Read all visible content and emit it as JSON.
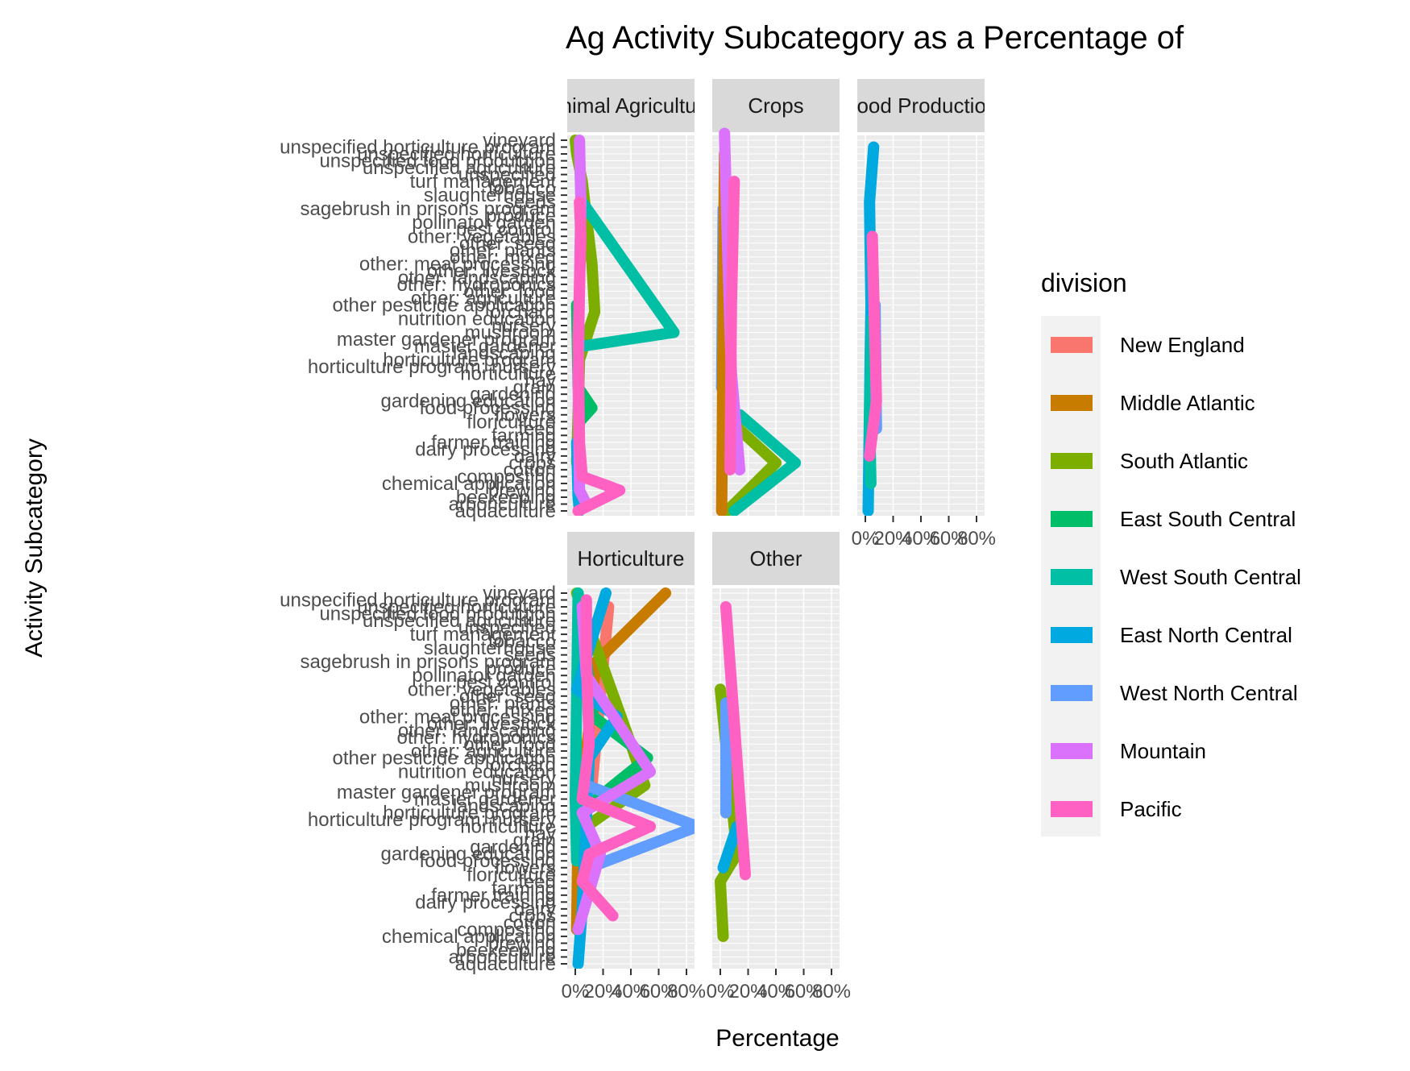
{
  "chart_data": {
    "type": "line",
    "title": "Ag Activity Subcategory as a Percentage of",
    "xlabel": "Percentage",
    "ylabel": "Activity Subcategory",
    "x_ticks": [
      "0%",
      "20%",
      "40%",
      "60%",
      "80%"
    ],
    "xlim": [
      0,
      80
    ],
    "legend": {
      "title": "division",
      "placement": "right",
      "entries": [
        {
          "name": "New England",
          "color": "#F8766D"
        },
        {
          "name": "Middle Atlantic",
          "color": "#C77C00"
        },
        {
          "name": "South Atlantic",
          "color": "#7CAE00"
        },
        {
          "name": "East South Central",
          "color": "#00BE67"
        },
        {
          "name": "West South Central",
          "color": "#00BFA4"
        },
        {
          "name": "East North Central",
          "color": "#00A9E0"
        },
        {
          "name": "West North Central",
          "color": "#619CFF"
        },
        {
          "name": "Mountain",
          "color": "#DB72FB"
        },
        {
          "name": "Pacific",
          "color": "#FF61C3"
        }
      ]
    },
    "categories": [
      "aquaculture",
      "arboriculture",
      "beekeeping",
      "brewing",
      "chemical application",
      "composting",
      "cotton",
      "crops",
      "dairy",
      "dairy processing",
      "farmer training",
      "farming",
      "feed",
      "floriculture",
      "flowers",
      "food processing",
      "gardening education",
      "gardening",
      "grain",
      "hay",
      "horticulture",
      "horticulture program: nursery",
      "horticulture program",
      "landscaping",
      "master gardener",
      "master gardener program",
      "mushroom",
      "nursery",
      "nutrition education",
      "orchard",
      "other pesticide application",
      "other: agriculture",
      "other: food",
      "other: hydroponics",
      "other: landscaping",
      "other: livestock",
      "other: meat processing",
      "other: mixed",
      "other: plants",
      "other: seed",
      "other: vegetables",
      "pest control",
      "pollinator garden",
      "produce",
      "sagebrush in prisons program",
      "seeds",
      "slaughterhouse",
      "tobacco",
      "turf management",
      "unspecified",
      "unspecified agriculture",
      "unspecified food production",
      "unspecified horticulture",
      "unspecified horticulture program",
      "vineyard"
    ],
    "facets": [
      {
        "label": "Animal Agriculture",
        "series": [
          {
            "name": "South Atlantic",
            "points": [
              [
                1,
                7
              ],
              [
                2,
                14
              ],
              [
                3,
                22
              ],
              [
                14,
                29
              ],
              [
                12,
                36
              ],
              [
                5,
                48
              ],
              [
                1,
                52
              ],
              [
                0,
                54
              ]
            ]
          },
          {
            "name": "East South Central",
            "points": [
              [
                2,
                8
              ],
              [
                3,
                13
              ],
              [
                12,
                15
              ],
              [
                2,
                18
              ],
              [
                1,
                30
              ]
            ]
          },
          {
            "name": "West South Central",
            "points": [
              [
                5,
                24
              ],
              [
                71,
                26
              ],
              [
                5,
                45
              ]
            ]
          },
          {
            "name": "East North Central",
            "points": [
              [
                3,
                0
              ],
              [
                2,
                2
              ],
              [
                1,
                10
              ]
            ]
          },
          {
            "name": "Mountain",
            "points": [
              [
                8,
                1
              ],
              [
                3,
                3
              ],
              [
                2,
                20
              ],
              [
                4,
                45
              ],
              [
                3,
                54
              ]
            ]
          },
          {
            "name": "Pacific",
            "points": [
              [
                2,
                0
              ],
              [
                32,
                3
              ],
              [
                5,
                5
              ],
              [
                3,
                10
              ],
              [
                2,
                25
              ],
              [
                4,
                40
              ],
              [
                3,
                45
              ]
            ]
          }
        ]
      },
      {
        "label": "Crops",
        "series": [
          {
            "name": "South Atlantic",
            "points": [
              [
                1,
                18
              ],
              [
                13,
                12
              ],
              [
                40,
                7
              ],
              [
                5,
                0
              ]
            ]
          },
          {
            "name": "West South Central",
            "points": [
              [
                14,
                14
              ],
              [
                54,
                7
              ],
              [
                10,
                0
              ]
            ]
          },
          {
            "name": "West North Central",
            "points": [
              [
                1,
                18
              ],
              [
                2,
                44
              ]
            ]
          },
          {
            "name": "Middle Atlantic",
            "points": [
              [
                1,
                0
              ],
              [
                3,
                52
              ]
            ]
          },
          {
            "name": "Mountain",
            "points": [
              [
                14,
                6
              ],
              [
                8,
                20
              ],
              [
                5,
                40
              ],
              [
                3,
                55
              ]
            ]
          },
          {
            "name": "Pacific",
            "points": [
              [
                7,
                6
              ],
              [
                8,
                30
              ],
              [
                10,
                48
              ]
            ]
          }
        ]
      },
      {
        "label": "Food Production",
        "series": [
          {
            "name": "East North Central",
            "points": [
              [
                2,
                0
              ],
              [
                4,
                30
              ],
              [
                3,
                45
              ],
              [
                6,
                53
              ]
            ]
          },
          {
            "name": "West South Central",
            "points": [
              [
                4,
                4
              ],
              [
                3,
                14
              ],
              [
                5,
                28
              ]
            ]
          },
          {
            "name": "West North Central",
            "points": [
              [
                8,
                12
              ],
              [
                7,
                30
              ]
            ]
          },
          {
            "name": "Pacific",
            "points": [
              [
                3,
                8
              ],
              [
                8,
                16
              ],
              [
                5,
                40
              ]
            ]
          }
        ]
      },
      {
        "label": "Horticulture",
        "series": [
          {
            "name": "New England",
            "points": [
              [
                12,
                26
              ],
              [
                24,
                52
              ]
            ]
          },
          {
            "name": "Middle Atlantic",
            "points": [
              [
                1,
                5
              ],
              [
                2,
                20
              ],
              [
                15,
                44
              ],
              [
                65,
                54
              ]
            ]
          },
          {
            "name": "South Atlantic",
            "points": [
              [
                8,
                20
              ],
              [
                50,
                26
              ],
              [
                40,
                32
              ],
              [
                1,
                54
              ]
            ]
          },
          {
            "name": "East South Central",
            "points": [
              [
                3,
                22
              ],
              [
                52,
                30
              ],
              [
                13,
                36
              ],
              [
                2,
                54
              ]
            ]
          },
          {
            "name": "West South Central",
            "points": [
              [
                1,
                15
              ],
              [
                0,
                24
              ],
              [
                2,
                54
              ]
            ]
          },
          {
            "name": "East North Central",
            "points": [
              [
                2,
                0
              ],
              [
                5,
                8
              ],
              [
                10,
                30
              ],
              [
                30,
                36
              ],
              [
                1,
                40
              ],
              [
                22,
                54
              ]
            ]
          },
          {
            "name": "West North Central",
            "points": [
              [
                10,
                14
              ],
              [
                88,
                20
              ],
              [
                8,
                26
              ]
            ]
          },
          {
            "name": "Mountain",
            "points": [
              [
                2,
                5
              ],
              [
                18,
                16
              ],
              [
                5,
                22
              ],
              [
                54,
                28
              ],
              [
                8,
                42
              ],
              [
                5,
                52
              ]
            ]
          },
          {
            "name": "Pacific",
            "points": [
              [
                27,
                7
              ],
              [
                5,
                12
              ],
              [
                10,
                16
              ],
              [
                54,
                20
              ],
              [
                5,
                24
              ],
              [
                10,
                32
              ],
              [
                8,
                44
              ],
              [
                8,
                53
              ]
            ]
          }
        ]
      },
      {
        "label": "Other",
        "series": [
          {
            "name": "South Atlantic",
            "points": [
              [
                2,
                4
              ],
              [
                0,
                12
              ],
              [
                12,
                16
              ],
              [
                0,
                40
              ]
            ]
          },
          {
            "name": "West North Central",
            "points": [
              [
                4,
                22
              ],
              [
                4,
                38
              ]
            ]
          },
          {
            "name": "East North Central",
            "points": [
              [
                2,
                14
              ],
              [
                12,
                20
              ]
            ]
          },
          {
            "name": "Pacific",
            "points": [
              [
                18,
                13
              ],
              [
                4,
                52
              ]
            ]
          }
        ]
      }
    ]
  }
}
